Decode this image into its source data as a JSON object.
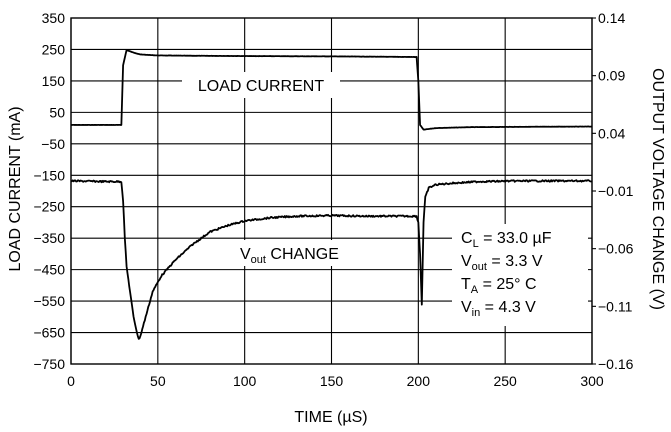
{
  "chart_data": {
    "type": "line",
    "xlabel_main": "TIME (",
    "xlabel_unit": "µS",
    "xlabel_end": ")",
    "ylabel_left": "LOAD CURRENT (mA)",
    "ylabel_right": "OUTPUT VOLTAGE CHANGE (V)",
    "xlim": [
      0,
      300
    ],
    "ylim_left": [
      -750,
      350
    ],
    "ylim_right": [
      -0.16,
      0.14
    ],
    "xticks": [
      "0",
      "50",
      "100",
      "150",
      "200",
      "250",
      "300"
    ],
    "yticks_left": [
      "350",
      "250",
      "150",
      "50",
      "−50",
      "−150",
      "−250",
      "−350",
      "−450",
      "−550",
      "−650",
      "−750"
    ],
    "yticks_right": [
      "0.14",
      "0.09",
      "0.04",
      "−0.01",
      "−0.06",
      "−0.11",
      "−0.16"
    ],
    "grid": true,
    "series": [
      {
        "name": "LOAD CURRENT",
        "axis": "left",
        "x": [
          0,
          29,
          30,
          32,
          36,
          40,
          50,
          70,
          100,
          150,
          199,
          200,
          201,
          203,
          210,
          230,
          260,
          300
        ],
        "y": [
          10,
          10,
          200,
          248,
          240,
          234,
          231,
          230,
          229,
          228,
          226,
          150,
          10,
          -5,
          0,
          3,
          4,
          5
        ]
      },
      {
        "name": "Vout CHANGE",
        "axis": "left",
        "x": [
          0,
          20,
          29,
          30,
          31,
          32,
          34,
          36,
          38,
          39,
          40,
          43,
          47,
          52,
          60,
          70,
          80,
          90,
          100,
          115,
          130,
          150,
          170,
          199,
          200,
          201,
          202,
          203,
          204,
          206,
          210,
          220,
          235,
          260,
          300
        ],
        "y": [
          -168,
          -170,
          -170,
          -230,
          -350,
          -440,
          -520,
          -600,
          -650,
          -672,
          -660,
          -600,
          -520,
          -470,
          -420,
          -370,
          -330,
          -310,
          -295,
          -285,
          -280,
          -278,
          -280,
          -280,
          -300,
          -400,
          -560,
          -300,
          -220,
          -190,
          -180,
          -175,
          -170,
          -168,
          -168
        ]
      }
    ],
    "annotations": {
      "load_current": "LOAD CURRENT",
      "vout_change": {
        "main": "V",
        "sub": "out",
        "rest": " CHANGE"
      },
      "conditions": [
        {
          "main": "C",
          "sub": "L",
          "rest": " = 33.0 µF"
        },
        {
          "main": "V",
          "sub": "out",
          "rest": " = 3.3 V"
        },
        {
          "main": "T",
          "sub": "A",
          "rest": " = 25° C"
        },
        {
          "main": "V",
          "sub": "in",
          "rest": " = 4.3 V"
        }
      ]
    }
  }
}
